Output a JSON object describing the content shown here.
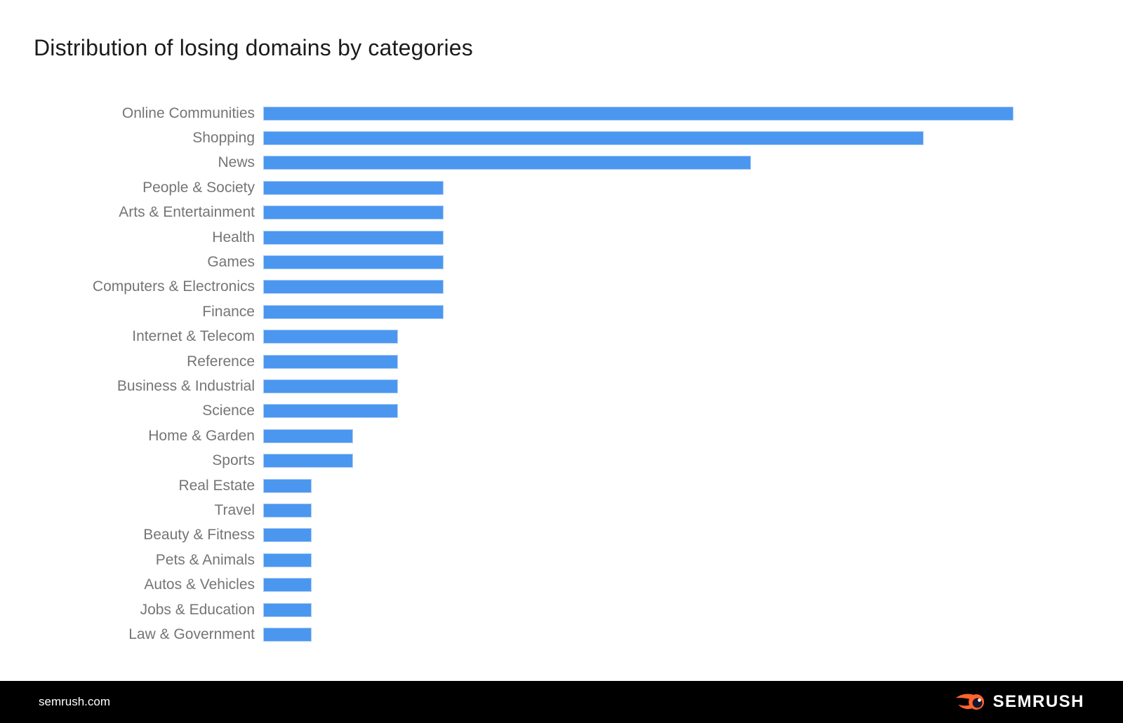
{
  "header": {
    "title": "Distribution of losing domains by categories"
  },
  "chart_data": {
    "type": "bar",
    "orientation": "horizontal",
    "title": "Distribution of losing domains by categories",
    "categories": [
      "Online Communities",
      "Shopping",
      "News",
      "People & Society",
      "Arts & Entertainment",
      "Health",
      "Games",
      "Computers & Electronics",
      "Finance",
      "Internet & Telecom",
      "Reference",
      "Business & Industrial",
      "Science",
      "Home & Garden",
      "Sports",
      "Real Estate",
      "Travel",
      "Beauty & Fitness",
      "Pets & Animals",
      "Autos & Vehicles",
      "Jobs & Education",
      "Law & Government"
    ],
    "values": [
      100,
      88,
      65,
      24,
      24,
      24,
      24,
      24,
      24,
      18,
      18,
      18,
      18,
      12,
      12,
      6.5,
      6.5,
      6.5,
      6.5,
      6.5,
      6.5,
      6.5
    ],
    "value_unit": "percent of longest bar (no axis labels shown in image)",
    "xlim": [
      0,
      100
    ],
    "grid": false,
    "value_labels_shown": false,
    "bar_color": "#4b97f0",
    "label_color": "#757575"
  },
  "footer": {
    "website": "semrush.com",
    "logo_text": "SEMRUSH",
    "background_color": "#000000",
    "logo_orange": "#ff642d",
    "text_color": "#ffffff"
  }
}
